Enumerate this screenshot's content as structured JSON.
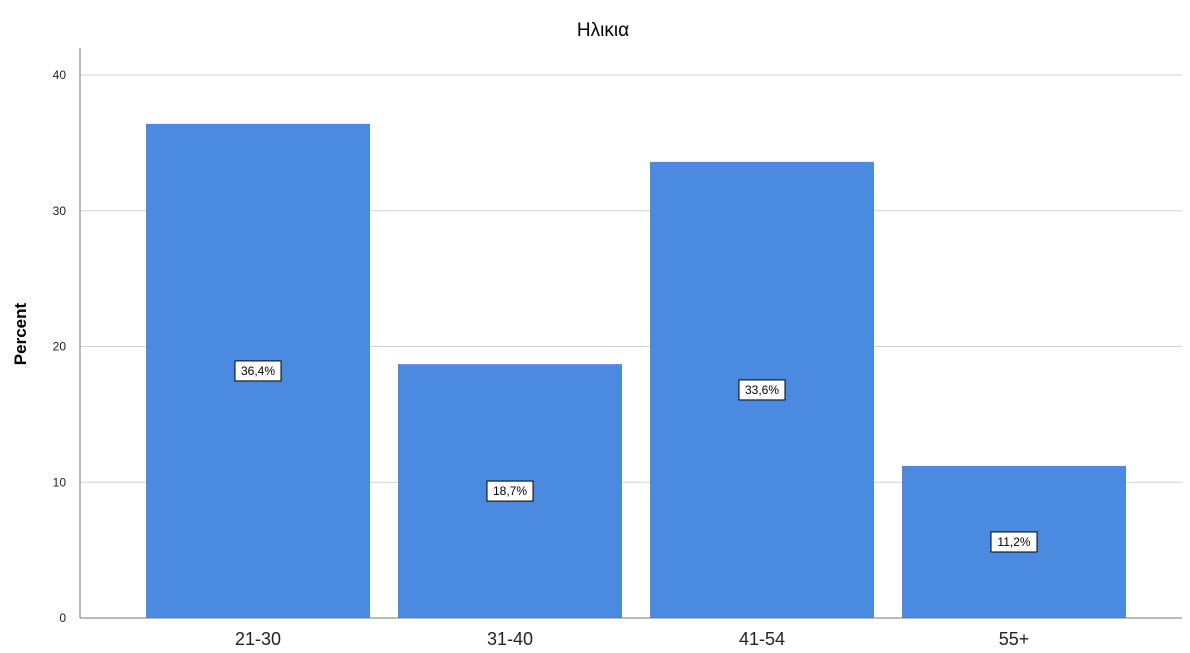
{
  "chart_data": {
    "type": "bar",
    "title": "Ηλικια",
    "xlabel": "",
    "ylabel": "Percent",
    "categories": [
      "21-30",
      "31-40",
      "41-54",
      "55+"
    ],
    "values": [
      36.4,
      18.7,
      33.6,
      11.2
    ],
    "data_labels": [
      "36,4%",
      "18,7%",
      "33,6%",
      "11,2%"
    ],
    "ylim": [
      0,
      40
    ],
    "yticks": [
      0,
      10,
      20,
      30,
      40
    ],
    "grid": true,
    "bar_color": "#4a8ae0"
  }
}
